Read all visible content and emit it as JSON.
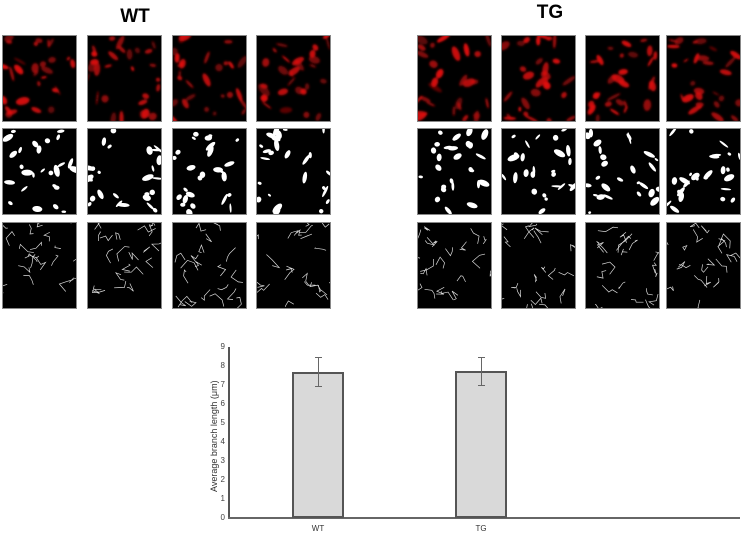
{
  "figure": {
    "groups": [
      {
        "label": "WT",
        "rows": [
          "fluorescence",
          "binary",
          "skeleton"
        ],
        "panel_count": 4
      },
      {
        "label": "TG",
        "rows": [
          "fluorescence",
          "binary",
          "skeleton"
        ],
        "panel_count": 4
      }
    ],
    "colors": {
      "fluorescence": "#e01010",
      "background": "#000000",
      "binary": "#ffffff",
      "bar_fill": "#d9d9d9",
      "bar_edge": "#555555"
    }
  },
  "chart_data": {
    "type": "bar",
    "title": "",
    "categories": [
      "WT",
      "TG"
    ],
    "values": [
      7.7,
      7.75
    ],
    "error": [
      0.75,
      0.75
    ],
    "xlabel": "",
    "ylabel": "Average branch length (μm)",
    "ylim": [
      0,
      9
    ],
    "yticks": [
      "0",
      "1",
      "2",
      "3",
      "4",
      "5",
      "6",
      "7",
      "8",
      "9"
    ],
    "grid": false,
    "legend": null
  }
}
